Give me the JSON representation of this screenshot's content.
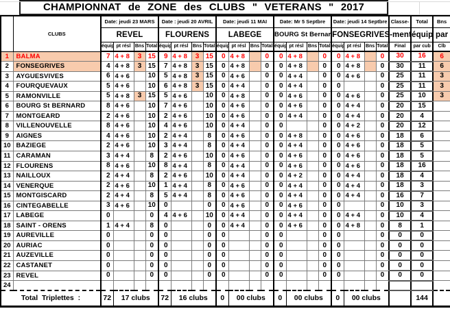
{
  "title": "CHAMPIONNAT de ZONE des CLUBS \" VETERANS \" 2017",
  "header": {
    "clubs": "CLUBS",
    "sub": [
      "équip",
      "pt résl",
      "Bns",
      "Total"
    ],
    "venues": [
      {
        "date": "Date: jeudi 23 MARS",
        "name": "REVEL"
      },
      {
        "date": "Date : jeudi 20 AVRIL",
        "name": "FLOURENS"
      },
      {
        "date": "Date: jeudi 11 MAI",
        "name": "LABEGE"
      },
      {
        "date": "Date: Mr 5 Septbre",
        "name": "BOURG St Bernard"
      },
      {
        "date": "Date: jeudi 14 Septbre",
        "name": "FONSEGRIVES"
      }
    ],
    "classement": {
      "l1": "Classe-",
      "l2": "-ment",
      "l3": "Final"
    },
    "total_equip": {
      "l1": "Total",
      "l2": "équip",
      "l3": "par cub"
    },
    "bns_club": {
      "l1": "Bns",
      "l2": "par",
      "l3": "Clb"
    }
  },
  "colors": {
    "highlight": "#F8CBAD",
    "leader_text": "#FF0000"
  },
  "rows": [
    {
      "n": "1",
      "club": "BALMA",
      "red": true,
      "num_fill": true,
      "club_fill": true,
      "cells": [
        {
          "e": "7",
          "p": "4 + 8",
          "b": "3",
          "t": "15",
          "bf": true
        },
        {
          "e": "9",
          "p": "4 + 8",
          "b": "3",
          "t": "15",
          "bf": true
        },
        {
          "e": "0",
          "p": "4 + 8",
          "b": "",
          "t": "0",
          "bf": true
        },
        {
          "e": "0",
          "p": "4 + 8",
          "b": "",
          "t": "0",
          "bf": true
        },
        {
          "e": "0",
          "p": "4 + 8",
          "b": "",
          "t": "0",
          "bf": true
        }
      ],
      "final": "30",
      "tot": "16",
      "bns": "6",
      "bns_fill": true
    },
    {
      "n": "2",
      "club": "FONSEGRIVES",
      "club_fill": true,
      "cells": [
        {
          "e": "4",
          "p": "4 + 8",
          "b": "3",
          "t": "15",
          "bf": true
        },
        {
          "e": "7",
          "p": "4 + 8",
          "b": "3",
          "t": "15",
          "bf": true
        },
        {
          "e": "0",
          "p": "4 + 8",
          "b": "",
          "t": "0",
          "bf": true
        },
        {
          "e": "0",
          "p": "4 + 8",
          "b": "",
          "t": "0",
          "bf": true
        },
        {
          "e": "0",
          "p": "4 + 8",
          "b": "",
          "t": "0",
          "bf": true
        }
      ],
      "final": "30",
      "tot": "11",
      "bns": "6",
      "bns_fill": true
    },
    {
      "n": "3",
      "club": "AYGUESVIVES",
      "cells": [
        {
          "e": "6",
          "p": "4 + 6",
          "b": "",
          "t": "10"
        },
        {
          "e": "5",
          "p": "4 + 8",
          "b": "3",
          "t": "15",
          "bf": true
        },
        {
          "e": "0",
          "p": "4 + 6",
          "b": "",
          "t": "0"
        },
        {
          "e": "0",
          "p": "4 + 4",
          "b": "",
          "t": "0"
        },
        {
          "e": "0",
          "p": "4 + 6",
          "b": "",
          "t": "0"
        }
      ],
      "final": "25",
      "tot": "11",
      "bns": "3",
      "bns_fill": true
    },
    {
      "n": "4",
      "club": "FOURQUEVAUX",
      "cells": [
        {
          "e": "5",
          "p": "4 + 6",
          "b": "",
          "t": "10"
        },
        {
          "e": "6",
          "p": "4 + 8",
          "b": "3",
          "t": "15",
          "bf": true
        },
        {
          "e": "0",
          "p": "4 + 4",
          "b": "",
          "t": "0"
        },
        {
          "e": "0",
          "p": "4 + 4",
          "b": "",
          "t": "0"
        },
        {
          "e": "0",
          "p": "",
          "b": "",
          "t": "0"
        }
      ],
      "final": "25",
      "tot": "11",
      "bns": "3",
      "bns_fill": true
    },
    {
      "n": "5",
      "club": "RAMONVILLE",
      "cells": [
        {
          "e": "5",
          "p": "4 + 8",
          "b": "3",
          "t": "15",
          "bf": true
        },
        {
          "e": "5",
          "p": "4 + 6",
          "b": "",
          "t": "10"
        },
        {
          "e": "0",
          "p": "4 + 8",
          "b": "",
          "t": "0"
        },
        {
          "e": "0",
          "p": "4 + 6",
          "b": "",
          "t": "0"
        },
        {
          "e": "0",
          "p": "4 + 6",
          "b": "",
          "t": "0"
        }
      ],
      "final": "25",
      "tot": "10",
      "bns": "3",
      "bns_fill": true
    },
    {
      "n": "6",
      "club": "BOURG St BERNARD",
      "cells": [
        {
          "e": "8",
          "p": "4 + 6",
          "b": "",
          "t": "10"
        },
        {
          "e": "7",
          "p": "4 + 6",
          "b": "",
          "t": "10"
        },
        {
          "e": "0",
          "p": "4 + 6",
          "b": "",
          "t": "0"
        },
        {
          "e": "0",
          "p": "4 + 6",
          "b": "",
          "t": "0"
        },
        {
          "e": "0",
          "p": "4 + 4",
          "b": "",
          "t": "0"
        }
      ],
      "final": "20",
      "tot": "15",
      "bns": ""
    },
    {
      "n": "7",
      "club": "MONTGEARD",
      "cells": [
        {
          "e": "2",
          "p": "4 + 6",
          "b": "",
          "t": "10"
        },
        {
          "e": "2",
          "p": "4 + 6",
          "b": "",
          "t": "10"
        },
        {
          "e": "0",
          "p": "4 + 6",
          "b": "",
          "t": "0"
        },
        {
          "e": "0",
          "p": "4 + 4",
          "b": "",
          "t": "0"
        },
        {
          "e": "0",
          "p": "4 + 4",
          "b": "",
          "t": "0"
        }
      ],
      "final": "20",
      "tot": "4",
      "bns": ""
    },
    {
      "n": "8",
      "club": "VILLENOUVELLE",
      "cells": [
        {
          "e": "8",
          "p": "4 + 6",
          "b": "",
          "t": "10"
        },
        {
          "e": "4",
          "p": "4 + 6",
          "b": "",
          "t": "10"
        },
        {
          "e": "0",
          "p": "4 + 4",
          "b": "",
          "t": "0"
        },
        {
          "e": "0",
          "p": "",
          "b": "",
          "t": "0"
        },
        {
          "e": "0",
          "p": "4 + 2",
          "b": "",
          "t": "0"
        }
      ],
      "final": "20",
      "tot": "12",
      "bns": ""
    },
    {
      "n": "9",
      "club": "AIGNES",
      "cells": [
        {
          "e": "4",
          "p": "4 + 6",
          "b": "",
          "t": "10"
        },
        {
          "e": "2",
          "p": "4 + 4",
          "b": "",
          "t": "8"
        },
        {
          "e": "0",
          "p": "4 + 6",
          "b": "",
          "t": "0"
        },
        {
          "e": "0",
          "p": "4 + 8",
          "b": "",
          "t": "0"
        },
        {
          "e": "0",
          "p": "4 + 6",
          "b": "",
          "t": "0"
        }
      ],
      "final": "18",
      "tot": "6",
      "bns": ""
    },
    {
      "n": "10",
      "club": "BAZIEGE",
      "cells": [
        {
          "e": "2",
          "p": "4 + 6",
          "b": "",
          "t": "10"
        },
        {
          "e": "3",
          "p": "4 + 4",
          "b": "",
          "t": "8"
        },
        {
          "e": "0",
          "p": "4 + 4",
          "b": "",
          "t": "0"
        },
        {
          "e": "0",
          "p": "4 + 4",
          "b": "",
          "t": "0"
        },
        {
          "e": "0",
          "p": "4 + 6",
          "b": "",
          "t": "0"
        }
      ],
      "final": "18",
      "tot": "5",
      "bns": ""
    },
    {
      "n": "11",
      "club": "CARAMAN",
      "cells": [
        {
          "e": "3",
          "p": "4 + 4",
          "b": "",
          "t": "8"
        },
        {
          "e": "2",
          "p": "4 + 6",
          "b": "",
          "t": "10"
        },
        {
          "e": "0",
          "p": "4 + 6",
          "b": "",
          "t": "0"
        },
        {
          "e": "0",
          "p": "4 + 6",
          "b": "",
          "t": "0"
        },
        {
          "e": "0",
          "p": "4 + 6",
          "b": "",
          "t": "0"
        }
      ],
      "final": "18",
      "tot": "5",
      "bns": ""
    },
    {
      "n": "12",
      "club": "FLOURENS",
      "cells": [
        {
          "e": "8",
          "p": "4 + 6",
          "b": "",
          "t": "10"
        },
        {
          "e": "8",
          "p": "4 + 4",
          "b": "",
          "t": "8"
        },
        {
          "e": "0",
          "p": "4 + 4",
          "b": "",
          "t": "0"
        },
        {
          "e": "0",
          "p": "4 + 6",
          "b": "",
          "t": "0"
        },
        {
          "e": "0",
          "p": "4 + 6",
          "b": "",
          "t": "0"
        }
      ],
      "final": "18",
      "tot": "16",
      "bns": ""
    },
    {
      "n": "13",
      "club": "NAILLOUX",
      "cells": [
        {
          "e": "2",
          "p": "4 + 4",
          "b": "",
          "t": "8"
        },
        {
          "e": "2",
          "p": "4 + 6",
          "b": "",
          "t": "10"
        },
        {
          "e": "0",
          "p": "4 + 4",
          "b": "",
          "t": "0"
        },
        {
          "e": "0",
          "p": "4 + 2",
          "b": "",
          "t": "0"
        },
        {
          "e": "0",
          "p": "4 + 4",
          "b": "",
          "t": "0"
        }
      ],
      "final": "18",
      "tot": "4",
      "bns": ""
    },
    {
      "n": "14",
      "club": "VENERQUE",
      "cells": [
        {
          "e": "2",
          "p": "4 + 6",
          "b": "",
          "t": "10"
        },
        {
          "e": "1",
          "p": "4 + 4",
          "b": "",
          "t": "8"
        },
        {
          "e": "0",
          "p": "4 + 6",
          "b": "",
          "t": "0"
        },
        {
          "e": "0",
          "p": "4 + 4",
          "b": "",
          "t": "0"
        },
        {
          "e": "0",
          "p": "4 + 4",
          "b": "",
          "t": "0"
        }
      ],
      "final": "18",
      "tot": "3",
      "bns": ""
    },
    {
      "n": "15",
      "club": "MONTGISCARD",
      "cells": [
        {
          "e": "2",
          "p": "4 + 4",
          "b": "",
          "t": "8"
        },
        {
          "e": "5",
          "p": "4 + 4",
          "b": "",
          "t": "8"
        },
        {
          "e": "0",
          "p": "4 + 6",
          "b": "",
          "t": "0"
        },
        {
          "e": "0",
          "p": "4 + 4",
          "b": "",
          "t": "0"
        },
        {
          "e": "0",
          "p": "4 + 4",
          "b": "",
          "t": "0"
        }
      ],
      "final": "16",
      "tot": "7",
      "bns": ""
    },
    {
      "n": "16",
      "club": "CINTEGABELLE",
      "cells": [
        {
          "e": "3",
          "p": "4 + 6",
          "b": "",
          "t": "10"
        },
        {
          "e": "0",
          "p": "",
          "b": "",
          "t": "0"
        },
        {
          "e": "0",
          "p": "4 + 6",
          "b": "",
          "t": "0"
        },
        {
          "e": "0",
          "p": "4 + 6",
          "b": "",
          "t": "0"
        },
        {
          "e": "0",
          "p": "",
          "b": "",
          "t": "0"
        }
      ],
      "final": "10",
      "tot": "3",
      "bns": ""
    },
    {
      "n": "17",
      "club": "LABEGE",
      "cells": [
        {
          "e": "0",
          "p": "",
          "b": "",
          "t": "0"
        },
        {
          "e": "4",
          "p": "4 + 6",
          "b": "",
          "t": "10"
        },
        {
          "e": "0",
          "p": "4 + 4",
          "b": "",
          "t": "0"
        },
        {
          "e": "0",
          "p": "4 + 4",
          "b": "",
          "t": "0"
        },
        {
          "e": "0",
          "p": "4 + 4",
          "b": "",
          "t": "0"
        }
      ],
      "final": "10",
      "tot": "4",
      "bns": ""
    },
    {
      "n": "18",
      "club": "SAINT - ORENS",
      "cells": [
        {
          "e": "1",
          "p": "4 + 4",
          "b": "",
          "t": "8"
        },
        {
          "e": "0",
          "p": "",
          "b": "",
          "t": "0"
        },
        {
          "e": "0",
          "p": "4 + 4",
          "b": "",
          "t": "0"
        },
        {
          "e": "0",
          "p": "4 + 6",
          "b": "",
          "t": "0"
        },
        {
          "e": "0",
          "p": "4 + 8",
          "b": "",
          "t": "0"
        }
      ],
      "final": "8",
      "tot": "1",
      "bns": ""
    },
    {
      "n": "19",
      "club": "AUREVILLE",
      "cells": [
        {
          "e": "0",
          "p": "",
          "b": "",
          "t": "0"
        },
        {
          "e": "0",
          "p": "",
          "b": "",
          "t": "0"
        },
        {
          "e": "0",
          "p": "",
          "b": "",
          "t": "0"
        },
        {
          "e": "0",
          "p": "",
          "b": "",
          "t": "0"
        },
        {
          "e": "0",
          "p": "",
          "b": "",
          "t": "0"
        }
      ],
      "final": "0",
      "tot": "0",
      "bns": ""
    },
    {
      "n": "20",
      "club": "AURIAC",
      "cells": [
        {
          "e": "0",
          "p": "",
          "b": "",
          "t": "0"
        },
        {
          "e": "0",
          "p": "",
          "b": "",
          "t": "0"
        },
        {
          "e": "0",
          "p": "",
          "b": "",
          "t": "0"
        },
        {
          "e": "0",
          "p": "",
          "b": "",
          "t": "0"
        },
        {
          "e": "0",
          "p": "",
          "b": "",
          "t": "0"
        }
      ],
      "final": "0",
      "tot": "0",
      "bns": ""
    },
    {
      "n": "21",
      "club": "AUZEVILLE",
      "cells": [
        {
          "e": "0",
          "p": "",
          "b": "",
          "t": "0"
        },
        {
          "e": "0",
          "p": "",
          "b": "",
          "t": "0"
        },
        {
          "e": "0",
          "p": "",
          "b": "",
          "t": "0"
        },
        {
          "e": "0",
          "p": "",
          "b": "",
          "t": "0"
        },
        {
          "e": "0",
          "p": "",
          "b": "",
          "t": "0"
        }
      ],
      "final": "0",
      "tot": "0",
      "bns": ""
    },
    {
      "n": "22",
      "club": "CASTANET",
      "cells": [
        {
          "e": "0",
          "p": "",
          "b": "",
          "t": "0"
        },
        {
          "e": "0",
          "p": "",
          "b": "",
          "t": "0"
        },
        {
          "e": "0",
          "p": "",
          "b": "",
          "t": "0"
        },
        {
          "e": "0",
          "p": "",
          "b": "",
          "t": "0"
        },
        {
          "e": "0",
          "p": "",
          "b": "",
          "t": "0"
        }
      ],
      "final": "0",
      "tot": "0",
      "bns": ""
    },
    {
      "n": "23",
      "club": "REVEL",
      "cells": [
        {
          "e": "0",
          "p": "",
          "b": "",
          "t": "0"
        },
        {
          "e": "0",
          "p": "",
          "b": "",
          "t": "0"
        },
        {
          "e": "0",
          "p": "",
          "b": "",
          "t": "0"
        },
        {
          "e": "0",
          "p": "",
          "b": "",
          "t": "0"
        },
        {
          "e": "0",
          "p": "",
          "b": "",
          "t": "0"
        }
      ],
      "final": "0",
      "tot": "0",
      "bns": ""
    },
    {
      "n": "24",
      "club": "",
      "cells": [
        {
          "e": "",
          "p": "",
          "b": "",
          "t": ""
        },
        {
          "e": "",
          "p": "",
          "b": "",
          "t": ""
        },
        {
          "e": "",
          "p": "",
          "b": "",
          "t": ""
        },
        {
          "e": "",
          "p": "",
          "b": "",
          "t": ""
        },
        {
          "e": "",
          "p": "",
          "b": "",
          "t": ""
        }
      ],
      "final": "",
      "tot": "",
      "bns": ""
    }
  ],
  "totals": {
    "label": "Total Triplettes :",
    "blocks": [
      {
        "equip": "72",
        "clubs": "17 clubs"
      },
      {
        "equip": "72",
        "clubs": "16 clubs"
      },
      {
        "equip": "0",
        "clubs": "00 clubs"
      },
      {
        "equip": "0",
        "clubs": "00 clubs"
      },
      {
        "equip": "0",
        "clubs": "00 clubs"
      }
    ],
    "final": "",
    "total_equip": "144",
    "bns": ""
  }
}
